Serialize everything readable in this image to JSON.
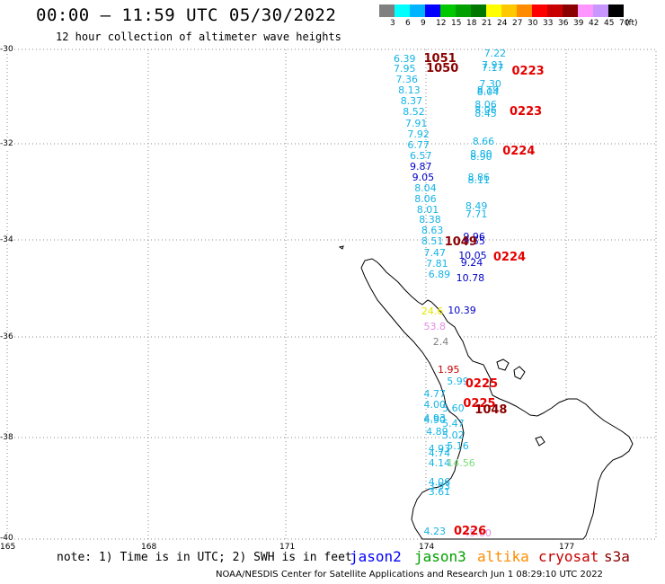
{
  "header": {
    "title": "00:00 – 11:59 UTC 05/30/2022",
    "subtitle": "12 hour collection of altimeter wave heights"
  },
  "color_scale": {
    "unit": "(ft)",
    "bins": [
      {
        "label": "3",
        "color": "#808080"
      },
      {
        "label": "6",
        "color": "#00ffff"
      },
      {
        "label": "9",
        "color": "#00b4ff"
      },
      {
        "label": "12",
        "color": "#0000ff"
      },
      {
        "label": "15",
        "color": "#00c800"
      },
      {
        "label": "18",
        "color": "#00a000"
      },
      {
        "label": "21",
        "color": "#007800"
      },
      {
        "label": "24",
        "color": "#ffff00"
      },
      {
        "label": "27",
        "color": "#ffc800"
      },
      {
        "label": "30",
        "color": "#ff8c00"
      },
      {
        "label": "33",
        "color": "#ff0000"
      },
      {
        "label": "36",
        "color": "#c80000"
      },
      {
        "label": "39",
        "color": "#8b0000"
      },
      {
        "label": "42",
        "color": "#ff96ff"
      },
      {
        "label": "45",
        "color": "#c896ff"
      },
      {
        "label": "70",
        "color": "#000000"
      }
    ]
  },
  "axes": {
    "lat_labels": [
      "-30",
      "-32",
      "-34",
      "-36",
      "-38",
      "-40"
    ],
    "lon_labels": [
      "165",
      "168",
      "171",
      "174",
      "177"
    ]
  },
  "colors": {
    "cyan_obs": "#14b4e6",
    "blue_obs": "#0000c8",
    "dark_red": "#8b0000",
    "red": "#e60000",
    "yellow": "#e6e600",
    "pink": "#e68ce6",
    "gray": "#808080",
    "green": "#78dc78",
    "jason2": "#0000ff",
    "jason3": "#00a000",
    "altika": "#ff8c00",
    "cryosat": "#c80000",
    "s3a": "#8b0000"
  },
  "observations": [
    {
      "v": "6.39",
      "c": "#14b4e6",
      "lat": -30.1,
      "lon": 173.29
    },
    {
      "v": "7.95",
      "c": "#14b4e6",
      "lat": -30.3,
      "lon": 173.29
    },
    {
      "v": "7.36",
      "c": "#14b4e6",
      "lat": -30.52,
      "lon": 173.34
    },
    {
      "v": "8.13",
      "c": "#14b4e6",
      "lat": -30.74,
      "lon": 173.39
    },
    {
      "v": "8.37",
      "c": "#14b4e6",
      "lat": -30.96,
      "lon": 173.44
    },
    {
      "v": "8.52",
      "c": "#14b4e6",
      "lat": -31.18,
      "lon": 173.49
    },
    {
      "v": "7.91",
      "c": "#14b4e6",
      "lat": -31.42,
      "lon": 173.54
    },
    {
      "v": "7.92",
      "c": "#14b4e6",
      "lat": -31.64,
      "lon": 173.59
    },
    {
      "v": "6.77",
      "c": "#14b4e6",
      "lat": -31.86,
      "lon": 173.59
    },
    {
      "v": "6.57",
      "c": "#14b4e6",
      "lat": -32.08,
      "lon": 173.64
    },
    {
      "v": "9.87",
      "c": "#0000c8",
      "lat": -32.3,
      "lon": 173.64
    },
    {
      "v": "9.05",
      "c": "#0000c8",
      "lat": -32.52,
      "lon": 173.69
    },
    {
      "v": "8.04",
      "c": "#14b4e6",
      "lat": -32.74,
      "lon": 173.74
    },
    {
      "v": "8.06",
      "c": "#14b4e6",
      "lat": -32.96,
      "lon": 173.74
    },
    {
      "v": "8.01",
      "c": "#14b4e6",
      "lat": -33.18,
      "lon": 173.79
    },
    {
      "v": "8.38",
      "c": "#14b4e6",
      "lat": -33.4,
      "lon": 173.84
    },
    {
      "v": "8.63",
      "c": "#14b4e6",
      "lat": -33.62,
      "lon": 173.89
    },
    {
      "v": "8.51",
      "c": "#14b4e6",
      "lat": -33.84,
      "lon": 173.89
    },
    {
      "v": "7.47",
      "c": "#14b4e6",
      "lat": -34.08,
      "lon": 173.94
    },
    {
      "v": "7.81",
      "c": "#14b4e6",
      "lat": -34.3,
      "lon": 173.99
    },
    {
      "v": "6.89",
      "c": "#14b4e6",
      "lat": -34.52,
      "lon": 174.04
    },
    {
      "v": "7.22",
      "c": "#14b4e6",
      "lat": -29.98,
      "lon": 175.24
    },
    {
      "v": "7.91",
      "c": "#14b4e6",
      "lat": -30.22,
      "lon": 175.19
    },
    {
      "v": "7.17",
      "c": "#14b4e6",
      "lat": -30.28,
      "lon": 175.19
    },
    {
      "v": "7.30",
      "c": "#14b4e6",
      "lat": -30.6,
      "lon": 175.14
    },
    {
      "v": "8.19",
      "c": "#14b4e6",
      "lat": -30.74,
      "lon": 175.09
    },
    {
      "v": "8.04",
      "c": "#14b4e6",
      "lat": -30.78,
      "lon": 175.09
    },
    {
      "v": "8.06",
      "c": "#14b4e6",
      "lat": -31.04,
      "lon": 175.04
    },
    {
      "v": "8.45",
      "c": "#14b4e6",
      "lat": -31.22,
      "lon": 175.04
    },
    {
      "v": "8.06",
      "c": "#14b4e6",
      "lat": -31.14,
      "lon": 175.04
    },
    {
      "v": "8.66",
      "c": "#14b4e6",
      "lat": -31.78,
      "lon": 174.99
    },
    {
      "v": "8.80",
      "c": "#14b4e6",
      "lat": -32.04,
      "lon": 174.94
    },
    {
      "v": "8.90",
      "c": "#14b4e6",
      "lat": -32.1,
      "lon": 174.94
    },
    {
      "v": "8.86",
      "c": "#14b4e6",
      "lat": -32.52,
      "lon": 174.89
    },
    {
      "v": "8.11",
      "c": "#14b4e6",
      "lat": -32.58,
      "lon": 174.89
    },
    {
      "v": "8.49",
      "c": "#14b4e6",
      "lat": -33.12,
      "lon": 174.84
    },
    {
      "v": "7.71",
      "c": "#14b4e6",
      "lat": -33.28,
      "lon": 174.84
    },
    {
      "v": "9.96",
      "c": "#0000c8",
      "lat": -33.74,
      "lon": 174.79
    },
    {
      "v": "9.55",
      "c": "#0000c8",
      "lat": -33.84,
      "lon": 174.79
    },
    {
      "v": "10.05",
      "c": "#0000c8",
      "lat": -34.12,
      "lon": 174.69
    },
    {
      "v": "9.24",
      "c": "#0000c8",
      "lat": -34.28,
      "lon": 174.74
    },
    {
      "v": "10.78",
      "c": "#0000c8",
      "lat": -34.58,
      "lon": 174.64
    },
    {
      "v": "10.39",
      "c": "#0000c8",
      "lat": -35.26,
      "lon": 174.46
    },
    {
      "v": "24.6",
      "c": "#e6e600",
      "lat": -35.28,
      "lon": 173.89
    },
    {
      "v": "53.8",
      "c": "#e68ce6",
      "lat": -35.58,
      "lon": 173.94
    },
    {
      "v": "2.4",
      "c": "#808080",
      "lat": -35.9,
      "lon": 174.14
    },
    {
      "v": "1.95",
      "c": "#c80000",
      "lat": -36.46,
      "lon": 174.24
    },
    {
      "v": "5.99",
      "c": "#14b4e6",
      "lat": -36.7,
      "lon": 174.44
    },
    {
      "v": "4.77",
      "c": "#14b4e6",
      "lat": -36.96,
      "lon": 173.94
    },
    {
      "v": "4.00",
      "c": "#14b4e6",
      "lat": -37.18,
      "lon": 173.94
    },
    {
      "v": "5.60",
      "c": "#14b4e6",
      "lat": -37.26,
      "lon": 174.34
    },
    {
      "v": "4.93",
      "c": "#14b4e6",
      "lat": -37.46,
      "lon": 173.94
    },
    {
      "v": "4.90",
      "c": "#14b4e6",
      "lat": -37.5,
      "lon": 173.94
    },
    {
      "v": "5.47",
      "c": "#14b4e6",
      "lat": -37.58,
      "lon": 174.34
    },
    {
      "v": "4.89",
      "c": "#14b4e6",
      "lat": -37.74,
      "lon": 173.99
    },
    {
      "v": "5.02",
      "c": "#14b4e6",
      "lat": -37.82,
      "lon": 174.34
    },
    {
      "v": "5.16",
      "c": "#14b4e6",
      "lat": -38.04,
      "lon": 174.44
    },
    {
      "v": "4.93",
      "c": "#14b4e6",
      "lat": -38.1,
      "lon": 174.04
    },
    {
      "v": "4.74",
      "c": "#14b4e6",
      "lat": -38.18,
      "lon": 174.04
    },
    {
      "v": "4.14",
      "c": "#14b4e6",
      "lat": -38.38,
      "lon": 174.04
    },
    {
      "v": "14.56",
      "c": "#78dc78",
      "lat": -38.38,
      "lon": 174.44
    },
    {
      "v": "4.06",
      "c": "#14b4e6",
      "lat": -38.78,
      "lon": 174.04
    },
    {
      "v": "3.93",
      "c": "#14b4e6",
      "lat": -38.86,
      "lon": 174.04
    },
    {
      "v": "3.61",
      "c": "#14b4e6",
      "lat": -38.98,
      "lon": 174.04
    },
    {
      "v": "4.23",
      "c": "#14b4e6",
      "lat": -39.78,
      "lon": 173.94
    },
    {
      "v": "45.60",
      "c": "#e68ce6",
      "lat": -39.82,
      "lon": 174.79
    }
  ],
  "pass_labels": [
    {
      "v": "1051",
      "c": "#8b0000",
      "lat": -30.08,
      "lon": 173.94
    },
    {
      "v": "1050",
      "c": "#8b0000",
      "lat": -30.28,
      "lon": 173.99
    },
    {
      "v": "0223",
      "c": "#e60000",
      "lat": -30.34,
      "lon": 175.84
    },
    {
      "v": "0223",
      "c": "#e60000",
      "lat": -31.16,
      "lon": 175.79
    },
    {
      "v": "0224",
      "c": "#e60000",
      "lat": -31.98,
      "lon": 175.64
    },
    {
      "v": "1049",
      "c": "#8b0000",
      "lat": -33.84,
      "lon": 174.39
    },
    {
      "v": "0224",
      "c": "#e60000",
      "lat": -34.14,
      "lon": 175.44
    },
    {
      "v": "0225",
      "c": "#e60000",
      "lat": -36.74,
      "lon": 174.84
    },
    {
      "v": "0225",
      "c": "#e60000",
      "lat": -37.16,
      "lon": 174.79
    },
    {
      "v": "1048",
      "c": "#8b0000",
      "lat": -37.28,
      "lon": 175.04
    },
    {
      "v": "0226",
      "c": "#e60000",
      "lat": -39.76,
      "lon": 174.59
    }
  ],
  "note": "note: 1) Time is in UTC; 2) SWH is in feet",
  "satellites": [
    {
      "name": "jason2",
      "color": "#0000ff"
    },
    {
      "name": "jason3",
      "color": "#00a000"
    },
    {
      "name": "altika",
      "color": "#ff8c00"
    },
    {
      "name": "cryosat",
      "color": "#c80000"
    },
    {
      "name": "s3a",
      "color": "#8b0000"
    }
  ],
  "credit": "NOAA/NESDIS Center for Satellite Applications and Research   Jun  1 08:29:10 UTC 2022"
}
